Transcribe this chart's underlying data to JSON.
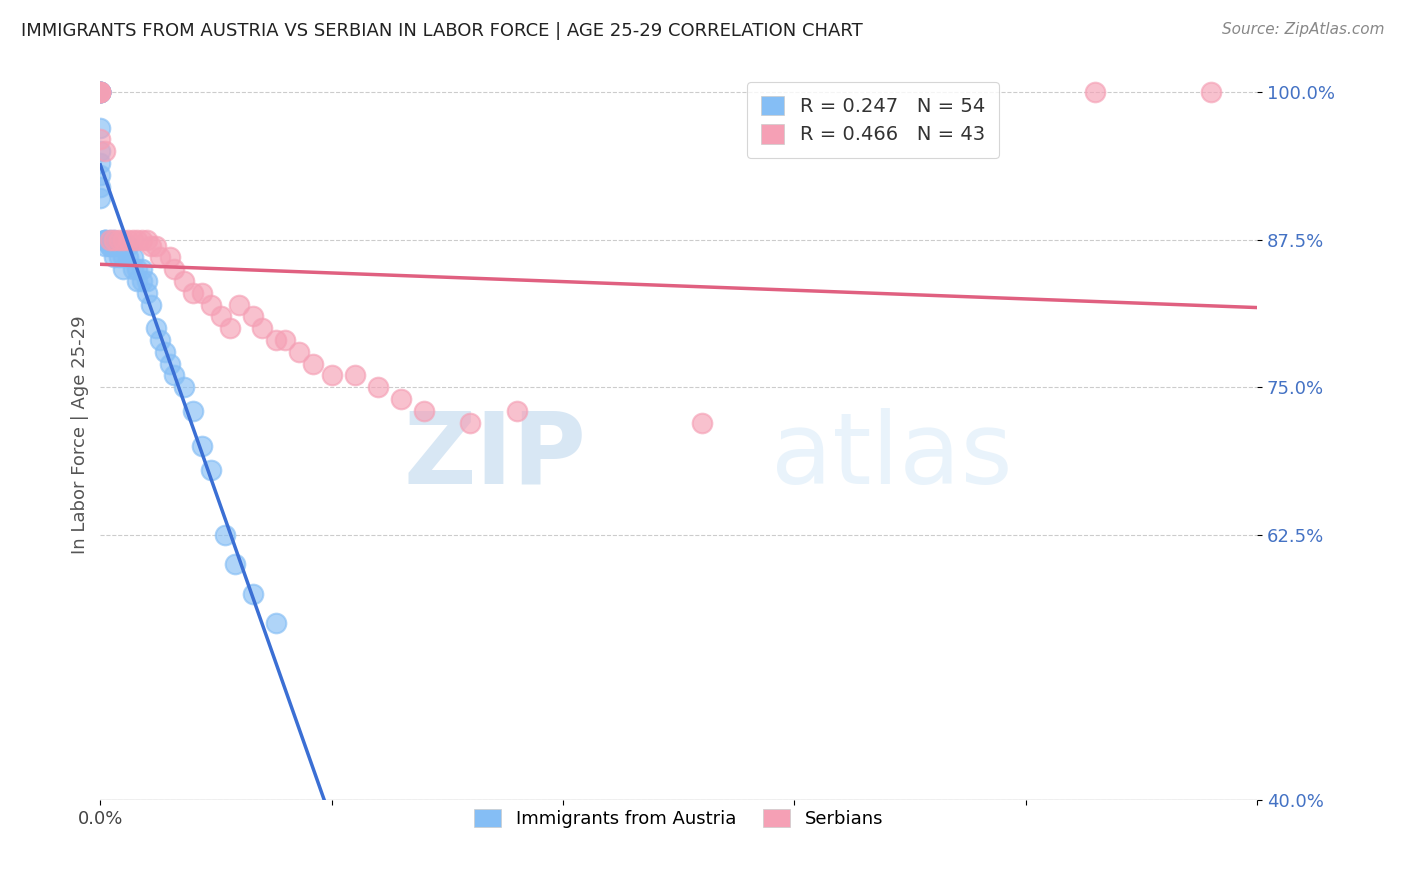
{
  "title": "IMMIGRANTS FROM AUSTRIA VS SERBIAN IN LABOR FORCE | AGE 25-29 CORRELATION CHART",
  "source": "Source: ZipAtlas.com",
  "ylabel": "In Labor Force | Age 25-29",
  "austria_label": "Immigrants from Austria",
  "serbia_label": "Serbians",
  "R_austria": 0.247,
  "N_austria": 54,
  "R_serbia": 0.466,
  "N_serbia": 43,
  "austria_color": "#85bef5",
  "serbia_color": "#f5a0b5",
  "austria_line_color": "#3b6fd4",
  "serbia_line_color": "#e06080",
  "background_color": "#ffffff",
  "watermark_zip": "ZIP",
  "watermark_atlas": "atlas",
  "xmin": 0.0,
  "xmax": 0.25,
  "ymin": 0.4,
  "ymax": 1.02,
  "yticks": [
    0.4,
    0.625,
    0.75,
    0.875,
    1.0
  ],
  "ytick_labels": [
    "40.0%",
    "62.5%",
    "75.0%",
    "87.5%",
    "100.0%"
  ],
  "xticks": [
    0.0,
    0.05,
    0.1,
    0.15,
    0.2,
    0.25
  ],
  "xtick_labels": [
    "0.0%",
    "",
    "",
    "",
    "",
    ""
  ],
  "austria_x": [
    0.0,
    0.0,
    0.0,
    0.0,
    0.0,
    0.0,
    0.0,
    0.0,
    0.0,
    0.0,
    0.0,
    0.0,
    0.0,
    0.0,
    0.0,
    0.001,
    0.001,
    0.001,
    0.001,
    0.002,
    0.002,
    0.002,
    0.003,
    0.003,
    0.003,
    0.004,
    0.004,
    0.005,
    0.005,
    0.005,
    0.006,
    0.006,
    0.007,
    0.007,
    0.008,
    0.008,
    0.009,
    0.009,
    0.01,
    0.01,
    0.011,
    0.012,
    0.013,
    0.014,
    0.015,
    0.016,
    0.018,
    0.02,
    0.022,
    0.024,
    0.027,
    0.029,
    0.033,
    0.038
  ],
  "austria_y": [
    1.0,
    1.0,
    1.0,
    1.0,
    1.0,
    1.0,
    1.0,
    1.0,
    1.0,
    0.97,
    0.95,
    0.94,
    0.93,
    0.92,
    0.91,
    0.875,
    0.875,
    0.875,
    0.87,
    0.875,
    0.87,
    0.87,
    0.875,
    0.87,
    0.86,
    0.87,
    0.86,
    0.87,
    0.86,
    0.85,
    0.87,
    0.86,
    0.86,
    0.85,
    0.85,
    0.84,
    0.85,
    0.84,
    0.84,
    0.83,
    0.82,
    0.8,
    0.79,
    0.78,
    0.77,
    0.76,
    0.75,
    0.73,
    0.7,
    0.68,
    0.625,
    0.6,
    0.575,
    0.55
  ],
  "serbia_x": [
    0.0,
    0.0,
    0.0,
    0.0,
    0.0,
    0.001,
    0.002,
    0.003,
    0.004,
    0.005,
    0.006,
    0.007,
    0.008,
    0.009,
    0.01,
    0.011,
    0.012,
    0.013,
    0.015,
    0.016,
    0.018,
    0.02,
    0.022,
    0.024,
    0.026,
    0.028,
    0.03,
    0.033,
    0.035,
    0.038,
    0.04,
    0.043,
    0.046,
    0.05,
    0.055,
    0.06,
    0.065,
    0.07,
    0.08,
    0.09,
    0.13,
    0.215,
    0.24
  ],
  "serbia_y": [
    1.0,
    1.0,
    1.0,
    1.0,
    0.96,
    0.95,
    0.875,
    0.875,
    0.875,
    0.875,
    0.875,
    0.875,
    0.875,
    0.875,
    0.875,
    0.87,
    0.87,
    0.86,
    0.86,
    0.85,
    0.84,
    0.83,
    0.83,
    0.82,
    0.81,
    0.8,
    0.82,
    0.81,
    0.8,
    0.79,
    0.79,
    0.78,
    0.77,
    0.76,
    0.76,
    0.75,
    0.74,
    0.73,
    0.72,
    0.73,
    0.72,
    1.0,
    1.0
  ]
}
